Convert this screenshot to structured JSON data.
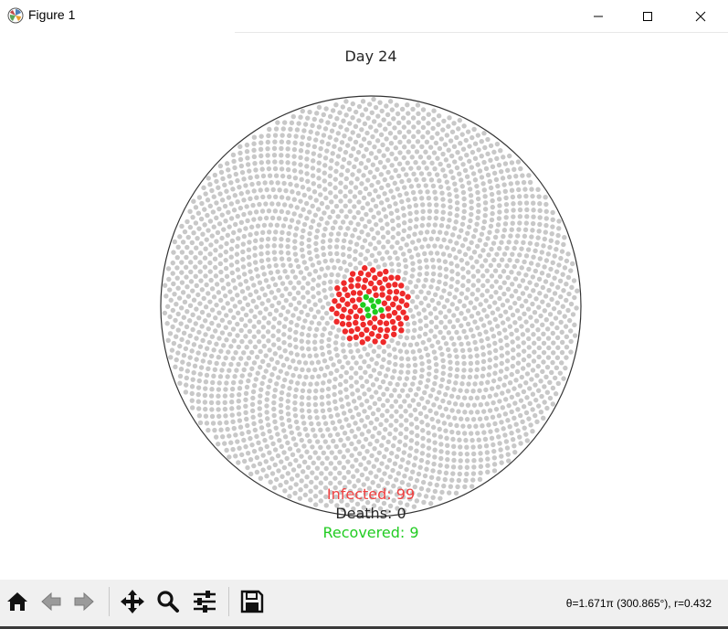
{
  "window": {
    "title": "Figure 1",
    "icon": "matplotlib-logo-icon",
    "controls": [
      "minimize-icon",
      "maximize-icon",
      "close-icon"
    ]
  },
  "figure": {
    "title": "Day 24",
    "infected_label": "Infected: 99",
    "deaths_label": "Deaths: 0",
    "recovered_label": "Recovered: 9",
    "colors": {
      "susceptible": "#c8c8c8",
      "infected": "#ee2a2a",
      "recovered": "#1fcc1f",
      "infected_text": "#f04040",
      "recovered_text": "#22cc22",
      "boundary": "#333333"
    }
  },
  "chart_data": {
    "type": "scatter",
    "projection": "polar",
    "title": "Day 24",
    "rlim": [
      0,
      1
    ],
    "grid": false,
    "population": 3000,
    "counts": {
      "infected": 99,
      "deaths": 0,
      "recovered": 9
    },
    "annotations": [
      "Infected: 99",
      "Deaths: 0",
      "Recovered: 9"
    ]
  },
  "toolbar": {
    "buttons": [
      {
        "name": "home-button",
        "icon": "home-icon"
      },
      {
        "name": "back-button",
        "icon": "left-arrow-icon"
      },
      {
        "name": "forward-button",
        "icon": "right-arrow-icon"
      },
      {
        "name": "pan-button",
        "icon": "move-arrows-icon"
      },
      {
        "name": "zoom-button",
        "icon": "magnifier-icon"
      },
      {
        "name": "configure-subplots-button",
        "icon": "sliders-icon"
      },
      {
        "name": "save-button",
        "icon": "floppy-disk-icon"
      }
    ],
    "status": "θ=1.671π (300.865°), r=0.432"
  }
}
